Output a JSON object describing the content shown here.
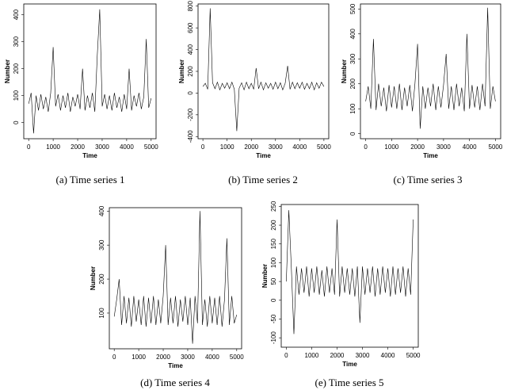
{
  "chart_data": [
    {
      "type": "line",
      "caption": "(a)  Time series 1",
      "xlabel": "Time",
      "ylabel": "Number",
      "color": "#000000",
      "x": [
        0,
        100,
        200,
        300,
        400,
        500,
        600,
        700,
        800,
        900,
        1000,
        1100,
        1200,
        1300,
        1400,
        1500,
        1600,
        1700,
        1800,
        1900,
        2000,
        2100,
        2200,
        2300,
        2400,
        2500,
        2600,
        2700,
        2800,
        2900,
        3000,
        3100,
        3200,
        3300,
        3400,
        3500,
        3600,
        3700,
        3800,
        3900,
        4000,
        4100,
        4200,
        4300,
        4400,
        4500,
        4600,
        4700,
        4800,
        4900,
        5000
      ],
      "values": [
        70,
        110,
        -40,
        100,
        45,
        105,
        50,
        95,
        40,
        110,
        280,
        60,
        105,
        45,
        100,
        55,
        110,
        40,
        95,
        60,
        105,
        50,
        200,
        45,
        100,
        55,
        110,
        40,
        250,
        420,
        60,
        105,
        50,
        100,
        45,
        110,
        55,
        95,
        40,
        105,
        50,
        200,
        45,
        100,
        60,
        110,
        50,
        95,
        310,
        55,
        90
      ],
      "xlim": [
        -200,
        5200
      ],
      "xticks": [
        0,
        1000,
        2000,
        3000,
        4000,
        5000
      ],
      "ylim": [
        -60,
        440
      ],
      "yticks": [
        0,
        100,
        200,
        300,
        400
      ]
    },
    {
      "type": "line",
      "caption": "(b)  Time series 2",
      "xlabel": "Time",
      "ylabel": "Number",
      "color": "#000000",
      "x": [
        0,
        100,
        200,
        300,
        400,
        500,
        600,
        700,
        800,
        900,
        1000,
        1100,
        1200,
        1300,
        1400,
        1500,
        1600,
        1700,
        1800,
        1900,
        2000,
        2100,
        2200,
        2300,
        2400,
        2500,
        2600,
        2700,
        2800,
        2900,
        3000,
        3100,
        3200,
        3300,
        3400,
        3500,
        3600,
        3700,
        3800,
        3900,
        4000,
        4100,
        4200,
        4300,
        4400,
        4500,
        4600,
        4700,
        4800,
        4900,
        5000
      ],
      "values": [
        60,
        90,
        35,
        780,
        95,
        40,
        100,
        30,
        90,
        45,
        95,
        40,
        100,
        35,
        -350,
        45,
        95,
        30,
        100,
        40,
        90,
        35,
        230,
        40,
        100,
        30,
        95,
        45,
        90,
        35,
        100,
        40,
        95,
        30,
        90,
        250,
        35,
        100,
        40,
        95,
        45,
        100,
        35,
        90,
        40,
        100,
        30,
        95,
        45,
        100,
        60
      ],
      "xlim": [
        -200,
        5200
      ],
      "xticks": [
        0,
        1000,
        2000,
        3000,
        4000,
        5000
      ],
      "ylim": [
        -420,
        820
      ],
      "yticks": [
        -400,
        -200,
        0,
        200,
        400,
        600,
        800
      ]
    },
    {
      "type": "line",
      "caption": "(c)  Time series 3",
      "xlabel": "Time",
      "ylabel": "Number",
      "color": "#000000",
      "x": [
        0,
        100,
        200,
        300,
        400,
        500,
        600,
        700,
        800,
        900,
        1000,
        1100,
        1200,
        1300,
        1400,
        1500,
        1600,
        1700,
        1800,
        1900,
        2000,
        2100,
        2200,
        2300,
        2400,
        2500,
        2600,
        2700,
        2800,
        2900,
        3000,
        3100,
        3200,
        3300,
        3400,
        3500,
        3600,
        3700,
        3800,
        3900,
        4000,
        4100,
        4200,
        4300,
        4400,
        4500,
        4600,
        4700,
        4800,
        4900,
        5000
      ],
      "values": [
        130,
        190,
        100,
        380,
        95,
        200,
        110,
        185,
        90,
        195,
        105,
        190,
        100,
        200,
        95,
        185,
        110,
        195,
        90,
        200,
        360,
        20,
        190,
        100,
        185,
        110,
        200,
        95,
        190,
        105,
        195,
        320,
        100,
        190,
        95,
        200,
        110,
        185,
        90,
        400,
        100,
        195,
        105,
        190,
        95,
        200,
        110,
        505,
        100,
        190,
        130
      ],
      "xlim": [
        -200,
        5200
      ],
      "xticks": [
        0,
        1000,
        2000,
        3000,
        4000,
        5000
      ],
      "ylim": [
        -20,
        520
      ],
      "yticks": [
        0,
        100,
        200,
        300,
        400,
        500
      ]
    },
    {
      "type": "line",
      "caption": "(d)  Time series 4",
      "xlabel": "Time",
      "ylabel": "Number",
      "color": "#000000",
      "x": [
        0,
        100,
        200,
        300,
        400,
        500,
        600,
        700,
        800,
        900,
        1000,
        1100,
        1200,
        1300,
        1400,
        1500,
        1600,
        1700,
        1800,
        1900,
        2000,
        2100,
        2200,
        2300,
        2400,
        2500,
        2600,
        2700,
        2800,
        2900,
        3000,
        3100,
        3200,
        3300,
        3400,
        3500,
        3600,
        3700,
        3800,
        3900,
        4000,
        4100,
        4200,
        4300,
        4400,
        4500,
        4600,
        4700,
        4800,
        4900,
        5000
      ],
      "values": [
        90,
        140,
        200,
        65,
        150,
        70,
        145,
        60,
        150,
        75,
        140,
        65,
        150,
        60,
        145,
        70,
        150,
        65,
        140,
        70,
        150,
        300,
        65,
        145,
        70,
        150,
        60,
        140,
        75,
        150,
        65,
        145,
        10,
        150,
        70,
        400,
        65,
        140,
        60,
        150,
        70,
        145,
        65,
        150,
        60,
        140,
        320,
        65,
        150,
        70,
        95
      ],
      "xlim": [
        -200,
        5200
      ],
      "xticks": [
        0,
        1000,
        2000,
        3000,
        4000,
        5000
      ],
      "ylim": [
        -5,
        410
      ],
      "yticks": [
        100,
        200,
        300,
        400
      ]
    },
    {
      "type": "line",
      "caption": "(e)  Time series 5",
      "xlabel": "Time",
      "ylabel": "Number",
      "color": "#000000",
      "x": [
        0,
        100,
        200,
        300,
        400,
        500,
        600,
        700,
        800,
        900,
        1000,
        1100,
        1200,
        1300,
        1400,
        1500,
        1600,
        1700,
        1800,
        1900,
        2000,
        2100,
        2200,
        2300,
        2400,
        2500,
        2600,
        2700,
        2800,
        2900,
        3000,
        3100,
        3200,
        3300,
        3400,
        3500,
        3600,
        3700,
        3800,
        3900,
        4000,
        4100,
        4200,
        4300,
        4400,
        4500,
        4600,
        4700,
        4800,
        4900,
        5000
      ],
      "values": [
        50,
        240,
        85,
        -90,
        90,
        15,
        85,
        20,
        90,
        10,
        85,
        20,
        90,
        15,
        80,
        10,
        90,
        20,
        85,
        15,
        215,
        10,
        90,
        20,
        85,
        15,
        85,
        10,
        90,
        -60,
        90,
        15,
        85,
        20,
        90,
        10,
        85,
        15,
        90,
        20,
        85,
        10,
        90,
        15,
        85,
        20,
        90,
        10,
        85,
        15,
        215
      ],
      "xlim": [
        -200,
        5200
      ],
      "xticks": [
        0,
        1000,
        2000,
        3000,
        4000,
        5000
      ],
      "ylim": [
        -125,
        255
      ],
      "yticks": [
        -100,
        -50,
        0,
        50,
        100,
        150,
        200,
        250
      ]
    }
  ]
}
